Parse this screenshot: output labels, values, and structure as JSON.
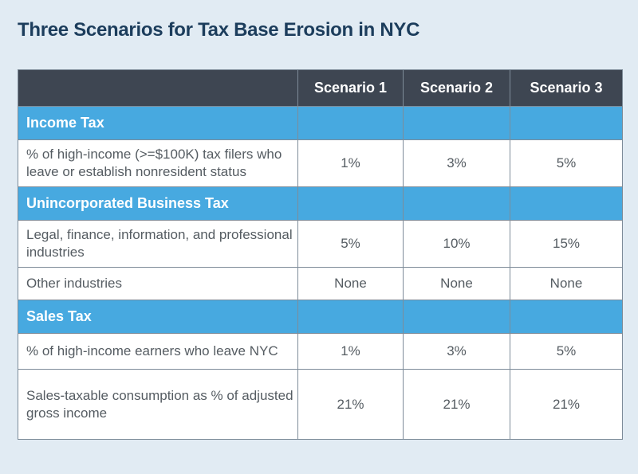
{
  "title": "Three Scenarios for Tax Base Erosion in NYC",
  "columns": [
    "",
    "Scenario 1",
    "Scenario 2",
    "Scenario 3"
  ],
  "sections": [
    {
      "name": "Income Tax",
      "rows": [
        {
          "label": "% of high-income (>=$100K) tax filers who leave or establish nonresident status",
          "values": [
            "1%",
            "3%",
            "5%"
          ]
        }
      ]
    },
    {
      "name": "Unincorporated Business Tax",
      "rows": [
        {
          "label": "Legal, finance, information, and professional industries",
          "values": [
            "5%",
            "10%",
            "15%"
          ]
        },
        {
          "label": "Other industries",
          "values": [
            "None",
            "None",
            "None"
          ]
        }
      ]
    },
    {
      "name": "Sales Tax",
      "rows": [
        {
          "label": "% of high-income earners who leave NYC",
          "values": [
            "1%",
            "3%",
            "5%"
          ]
        },
        {
          "label": "Sales-taxable consumption as % of adjusted gross income",
          "values": [
            "21%",
            "21%",
            "21%"
          ]
        }
      ]
    }
  ]
}
